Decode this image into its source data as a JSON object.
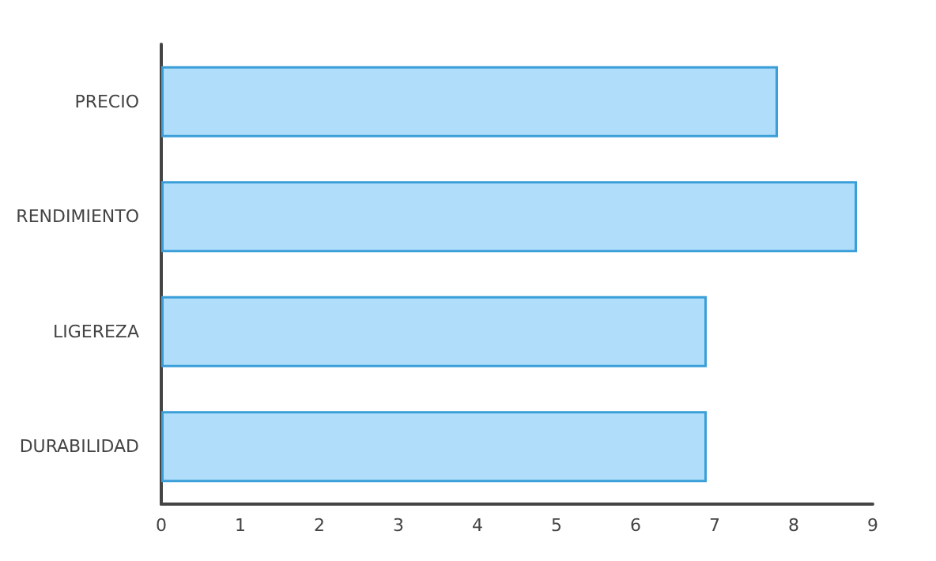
{
  "chart_data": {
    "type": "bar",
    "orientation": "horizontal",
    "categories": [
      "PRECIO",
      "RENDIMIENTO",
      "LIGEREZA",
      "DURABILIDAD"
    ],
    "values": [
      7.8,
      8.8,
      6.9,
      6.9
    ],
    "color": "#b0defa",
    "xlim": [
      0,
      9
    ],
    "xticks": [
      0,
      1,
      2,
      3,
      4,
      5,
      6,
      7,
      8,
      9
    ],
    "grid": false
  }
}
